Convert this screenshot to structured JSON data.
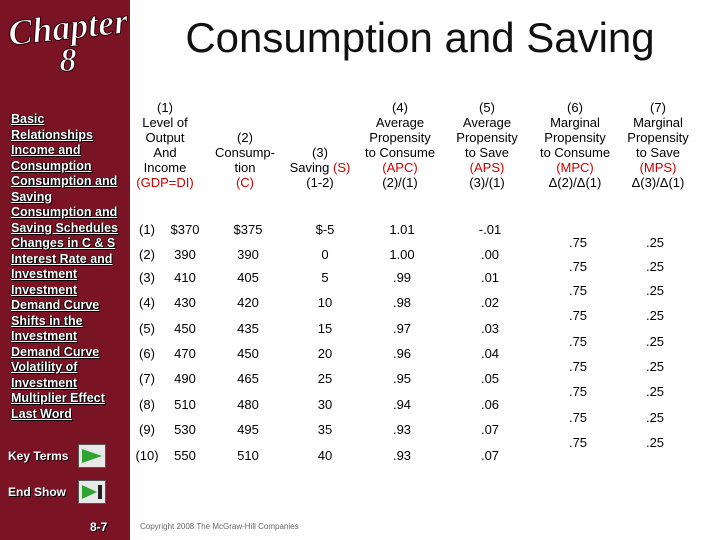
{
  "logo": {
    "word": "Chapter",
    "number": "8"
  },
  "title": "Consumption and Saving",
  "sidebar": {
    "links": [
      "Basic Relationships",
      "Income and Consumption",
      "Consumption and Saving",
      "Consumption and Saving Schedules",
      "Changes in C & S",
      "Interest Rate and Investment",
      "Investment Demand Curve",
      "Shifts in the Investment Demand Curve",
      "Volatility of Investment",
      "Multiplier Effect",
      "Last Word"
    ],
    "key_terms": "Key Terms",
    "end_show": "End Show",
    "page": "8-7"
  },
  "table": {
    "headers": [
      {
        "number": "(1)",
        "lines": [
          "Level of",
          "Output",
          "And",
          "Income"
        ],
        "symbol": "(GDP=DI)",
        "symbol_inline": false
      },
      {
        "number": "(2)",
        "lines": [
          "Consump-",
          "tion"
        ],
        "symbol": "(C)",
        "symbol_inline": false
      },
      {
        "number": "(3)",
        "lines": [
          "Saving"
        ],
        "symbol": "(S)",
        "symbol_inline": true,
        "formula": "(1-2)"
      },
      {
        "number": "(4)",
        "lines": [
          "Average",
          "Propensity",
          "to Consume"
        ],
        "symbol": "(APC)",
        "symbol_inline": false,
        "formula": "(2)/(1)"
      },
      {
        "number": "(5)",
        "lines": [
          "Average",
          "Propensity",
          "to Save"
        ],
        "symbol": "(APS)",
        "symbol_inline": false,
        "formula": "(3)/(1)"
      },
      {
        "number": "(6)",
        "lines": [
          "Marginal",
          "Propensity",
          "to Consume"
        ],
        "symbol": "(MPC)",
        "symbol_inline": false,
        "formula": "Δ(2)/Δ(1)"
      },
      {
        "number": "(7)",
        "lines": [
          "Marginal",
          "Propensity",
          "to Save"
        ],
        "symbol": "(MPS)",
        "symbol_inline": false,
        "formula": "Δ(3)/Δ(1)"
      }
    ],
    "rows": [
      {
        "label": "(1)",
        "cells": [
          "$370",
          "$375",
          "$-5",
          "1.01",
          "-.01"
        ]
      },
      {
        "label": "(2)",
        "cells": [
          "390",
          "390",
          "0",
          "1.00",
          ".00"
        ]
      },
      {
        "label": "(3)",
        "cells": [
          "410",
          "405",
          "5",
          ".99",
          ".01"
        ]
      },
      {
        "label": "(4)",
        "cells": [
          "430",
          "420",
          "10",
          ".98",
          ".02"
        ]
      },
      {
        "label": "(5)",
        "cells": [
          "450",
          "435",
          "15",
          ".97",
          ".03"
        ]
      },
      {
        "label": "(6)",
        "cells": [
          "470",
          "450",
          "20",
          ".96",
          ".04"
        ]
      },
      {
        "label": "(7)",
        "cells": [
          "490",
          "465",
          "25",
          ".95",
          ".05"
        ]
      },
      {
        "label": "(8)",
        "cells": [
          "510",
          "480",
          "30",
          ".94",
          ".06"
        ]
      },
      {
        "label": "(9)",
        "cells": [
          "530",
          "495",
          "35",
          ".93",
          ".07"
        ]
      },
      {
        "label": "(10)",
        "cells": [
          "550",
          "510",
          "40",
          ".93",
          ".07"
        ]
      }
    ],
    "marginal": [
      [
        ".75",
        ".25"
      ],
      [
        ".75",
        ".25"
      ],
      [
        ".75",
        ".25"
      ],
      [
        ".75",
        ".25"
      ],
      [
        ".75",
        ".25"
      ],
      [
        ".75",
        ".25"
      ],
      [
        ".75",
        ".25"
      ],
      [
        ".75",
        ".25"
      ],
      [
        ".75",
        ".25"
      ]
    ]
  },
  "copyright": "Copyright 2008 The McGraw-Hill Companies"
}
